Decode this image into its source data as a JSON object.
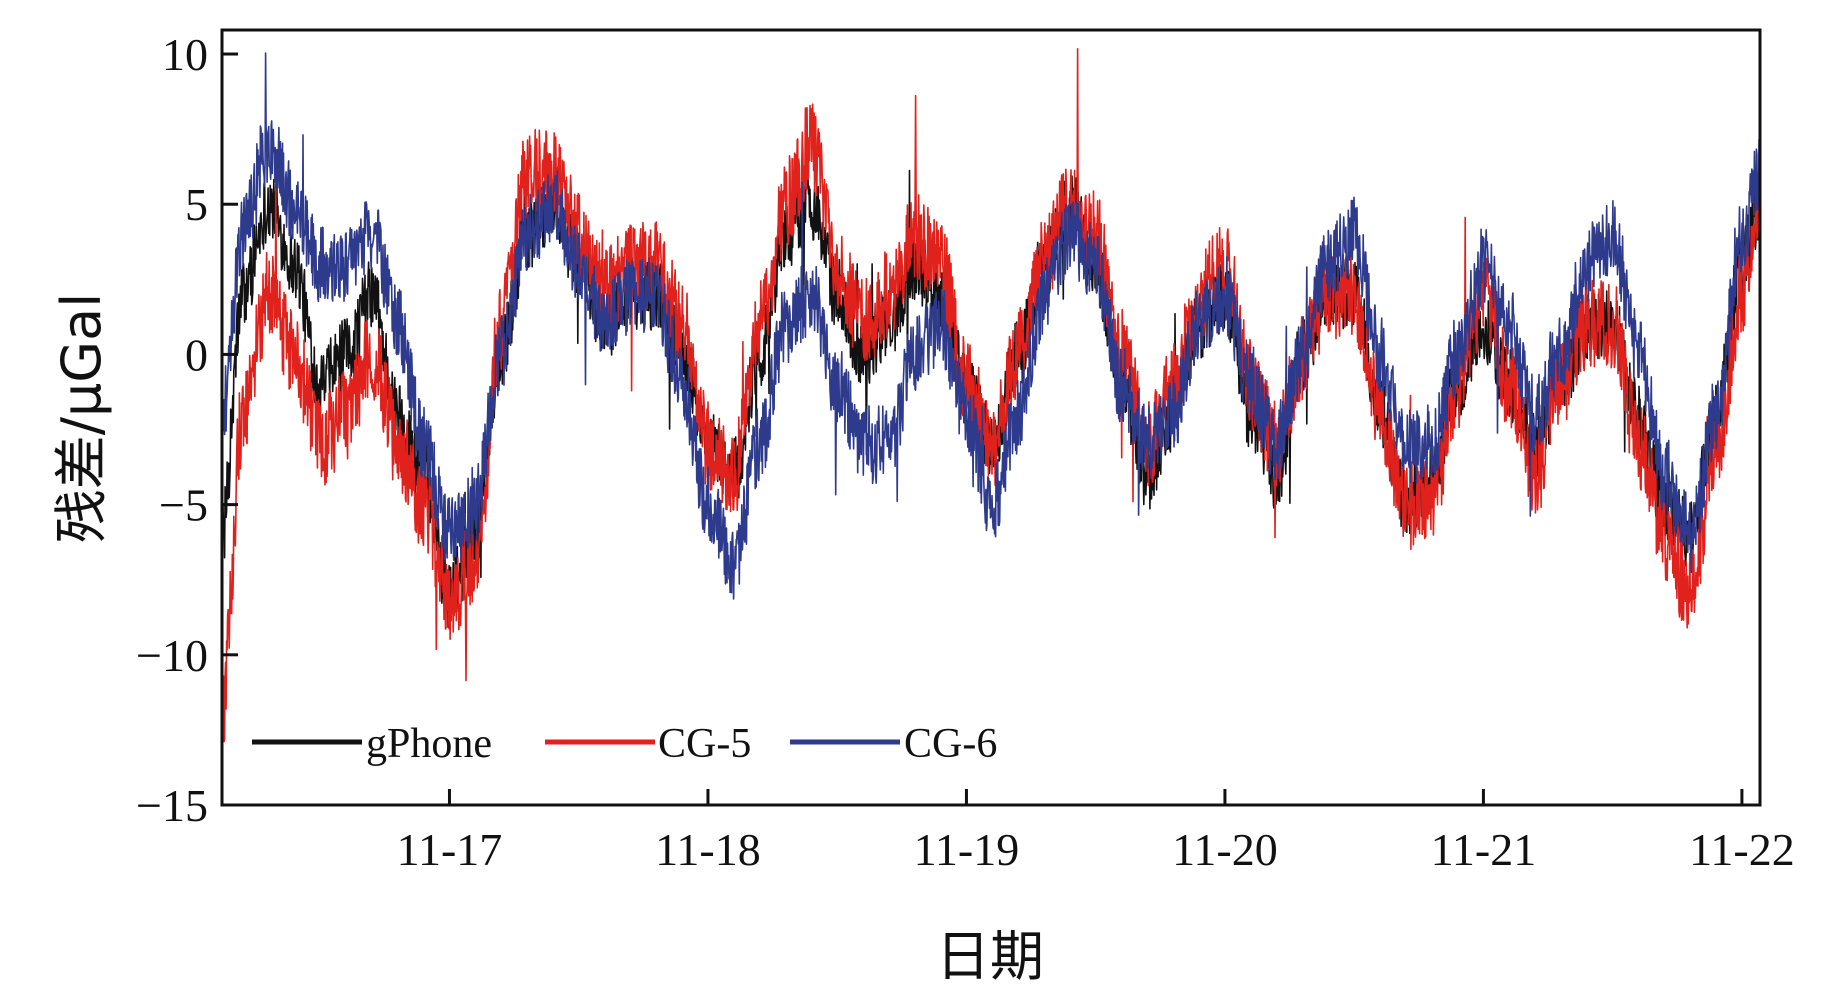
{
  "chart_data": {
    "type": "line",
    "title": "",
    "xlabel": "日期",
    "ylabel": "残差/μGal",
    "ylim": [
      -15,
      10.8
    ],
    "xlim": [
      16.12,
      22.07
    ],
    "y_ticks": [
      {
        "value": 10,
        "label": "10"
      },
      {
        "value": 5,
        "label": "5"
      },
      {
        "value": 0,
        "label": "0"
      },
      {
        "value": -5,
        "label": "−5"
      },
      {
        "value": -10,
        "label": "−10"
      },
      {
        "value": -15,
        "label": "−15"
      }
    ],
    "x_ticks": [
      {
        "value": 17,
        "label": "11-17"
      },
      {
        "value": 18,
        "label": "11-18"
      },
      {
        "value": 19,
        "label": "11-19"
      },
      {
        "value": 20,
        "label": "11-20"
      },
      {
        "value": 21,
        "label": "11-21"
      },
      {
        "value": 22,
        "label": "11-22"
      }
    ],
    "legend_position": "bottom-left",
    "series": [
      {
        "name": "gPhone",
        "color": "#111111",
        "noise": 1.2,
        "x": [
          16.12,
          16.2,
          16.3,
          16.4,
          16.5,
          16.6,
          16.7,
          16.8,
          16.9,
          17.0,
          17.1,
          17.2,
          17.3,
          17.4,
          17.5,
          17.6,
          17.7,
          17.8,
          17.9,
          18.0,
          18.1,
          18.2,
          18.3,
          18.4,
          18.5,
          18.6,
          18.7,
          18.8,
          18.9,
          19.0,
          19.1,
          19.2,
          19.3,
          19.4,
          19.5,
          19.6,
          19.7,
          19.8,
          19.9,
          20.0,
          20.1,
          20.2,
          20.3,
          20.4,
          20.5,
          20.6,
          20.7,
          20.8,
          20.9,
          21.0,
          21.1,
          21.2,
          21.3,
          21.4,
          21.5,
          21.6,
          21.7,
          21.8,
          21.9,
          22.0,
          22.07
        ],
        "values": [
          -6,
          2,
          5,
          3,
          -1,
          0,
          2,
          -2,
          -4,
          -8,
          -6,
          0,
          4,
          5,
          3,
          1,
          2,
          2,
          0,
          -3,
          -4,
          0,
          4,
          5,
          2,
          0,
          1,
          3,
          2,
          -1,
          -3,
          0,
          3,
          5,
          3,
          -1,
          -4,
          -2,
          1,
          2,
          -2,
          -4,
          0,
          2,
          2,
          -2,
          -5,
          -4,
          -1,
          1,
          -1,
          -3,
          -1,
          1,
          1,
          -2,
          -5,
          -6,
          -2,
          3,
          5
        ]
      },
      {
        "name": "CG-5",
        "color": "#e0211c",
        "noise": 1.5,
        "x": [
          16.12,
          16.2,
          16.3,
          16.4,
          16.5,
          16.6,
          16.7,
          16.8,
          16.9,
          17.0,
          17.1,
          17.2,
          17.3,
          17.4,
          17.5,
          17.6,
          17.7,
          17.8,
          17.9,
          18.0,
          18.1,
          18.2,
          18.3,
          18.4,
          18.5,
          18.6,
          18.7,
          18.8,
          18.9,
          19.0,
          19.1,
          19.2,
          19.3,
          19.4,
          19.5,
          19.6,
          19.7,
          19.8,
          19.9,
          20.0,
          20.1,
          20.2,
          20.3,
          20.4,
          20.5,
          20.6,
          20.7,
          20.8,
          20.9,
          21.0,
          21.1,
          21.2,
          21.3,
          21.4,
          21.5,
          21.6,
          21.7,
          21.8,
          21.9,
          22.0,
          22.07
        ],
        "values": [
          -12,
          -2,
          2,
          0,
          -3,
          -2,
          0,
          -3,
          -5,
          -8,
          -7,
          1,
          6,
          6,
          4,
          2,
          3,
          3,
          1,
          -3,
          -4,
          1,
          5,
          7,
          3,
          1,
          2,
          4,
          3,
          -1,
          -3,
          0,
          3,
          5,
          4,
          0,
          -3,
          -1,
          2,
          3,
          -1,
          -3,
          0,
          2,
          2,
          -2,
          -5,
          -5,
          -1,
          2,
          -1,
          -4,
          -1,
          1,
          1,
          -3,
          -6,
          -8,
          -3,
          2,
          5
        ]
      },
      {
        "name": "CG-6",
        "color": "#2e3a8c",
        "noise": 1.3,
        "x": [
          16.12,
          16.2,
          16.3,
          16.4,
          16.5,
          16.6,
          16.7,
          16.8,
          16.9,
          17.0,
          17.1,
          17.2,
          17.3,
          17.4,
          17.5,
          17.6,
          17.7,
          17.8,
          17.9,
          18.0,
          18.1,
          18.2,
          18.3,
          18.4,
          18.5,
          18.6,
          18.7,
          18.8,
          18.9,
          19.0,
          19.1,
          19.2,
          19.3,
          19.4,
          19.5,
          19.6,
          19.7,
          19.8,
          19.9,
          20.0,
          20.1,
          20.2,
          20.3,
          20.4,
          20.5,
          20.6,
          20.7,
          20.8,
          20.9,
          21.0,
          21.1,
          21.2,
          21.3,
          21.4,
          21.5,
          21.6,
          21.7,
          21.8,
          21.9,
          22.0,
          22.07
        ],
        "values": [
          -2,
          4,
          7,
          5,
          3,
          3,
          4,
          1,
          -3,
          -6,
          -5,
          0,
          4,
          5,
          3,
          1,
          2,
          2,
          -1,
          -5,
          -7,
          -3,
          1,
          2,
          -1,
          -3,
          -3,
          0,
          1,
          -2,
          -5,
          -2,
          2,
          4,
          3,
          -1,
          -3,
          -2,
          1,
          2,
          -1,
          -3,
          0,
          3,
          4,
          0,
          -3,
          -3,
          0,
          3,
          1,
          -2,
          0,
          3,
          4,
          0,
          -4,
          -6,
          -2,
          4,
          6
        ]
      }
    ]
  }
}
